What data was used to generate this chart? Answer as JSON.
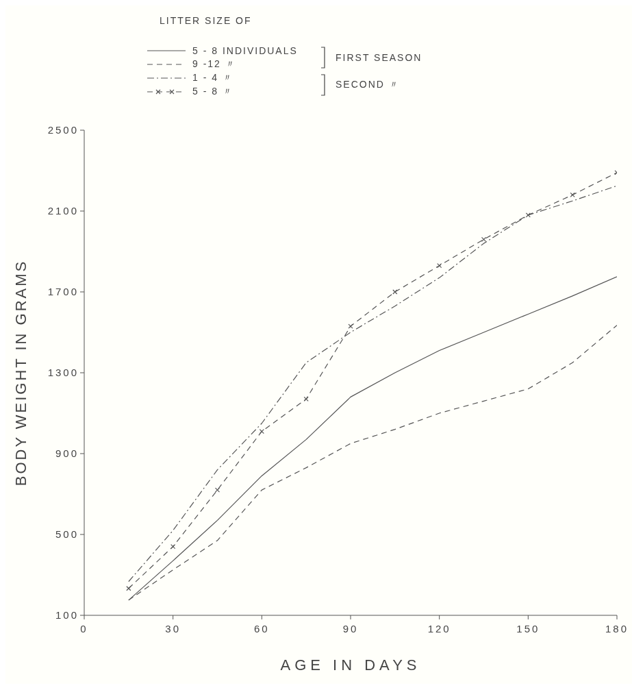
{
  "chart_data": {
    "type": "line",
    "legend_title": "LITTER SIZE OF",
    "xlabel": "AGE IN DAYS",
    "ylabel": "BODY WEIGHT IN GRAMS",
    "legend": "top",
    "annotations": [
      "FIRST SEASON",
      "SECOND 〃"
    ],
    "x": [
      15,
      30,
      45,
      60,
      75,
      90,
      105,
      120,
      135,
      150,
      165,
      180
    ],
    "xlim": [
      0,
      180
    ],
    "xticks": [
      0,
      30,
      60,
      90,
      120,
      150,
      180
    ],
    "ylim": [
      100,
      2500
    ],
    "yticks": [
      100,
      500,
      900,
      1300,
      1700,
      2100,
      2500
    ],
    "series": [
      {
        "name": "5 - 8 INDIVIDUALS",
        "color": "#555555",
        "line_style": "solid",
        "marker": "none",
        "values": [
          175,
          370,
          570,
          790,
          970,
          1180,
          1300,
          1410,
          1500,
          1590,
          1680,
          1775
        ]
      },
      {
        "name": "9 -12 〃",
        "color": "#555555",
        "line_style": "dashed",
        "marker": "none",
        "values": [
          175,
          325,
          470,
          720,
          830,
          950,
          1020,
          1100,
          1160,
          1220,
          1350,
          1535
        ]
      },
      {
        "name": "1 - 4 〃",
        "color": "#555555",
        "line_style": "dashdot",
        "marker": "none",
        "values": [
          267,
          520,
          820,
          1050,
          1350,
          1500,
          1630,
          1770,
          1940,
          2080,
          2150,
          2225
        ]
      },
      {
        "name": "5 - 8 〃",
        "color": "#555555",
        "line_style": "dashed",
        "marker": "cross",
        "values": [
          233,
          440,
          720,
          1010,
          1170,
          1530,
          1700,
          1830,
          1960,
          2080,
          2180,
          2290
        ]
      }
    ]
  }
}
